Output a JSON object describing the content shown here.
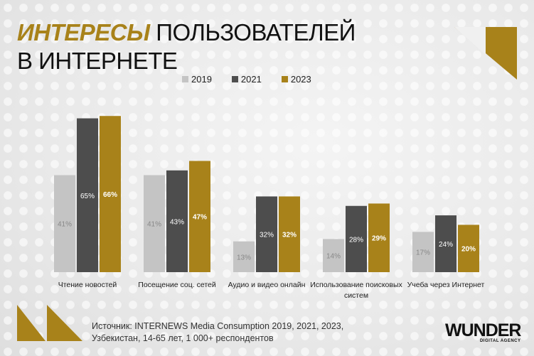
{
  "title": {
    "accent": "ИНТЕРЕСЫ",
    "rest": " ПОЛЬЗОВАТЕЛЕЙ",
    "line2": "В ИНТЕРНЕТЕ"
  },
  "colors": {
    "2019": "#c4c4c4",
    "2021": "#4d4d4d",
    "2023": "#a8821a",
    "accent": "#a8821a"
  },
  "chart_data": {
    "type": "bar",
    "categories": [
      "Чтение новостей",
      "Посещение соц. сетей",
      "Аудио и видео онлайн",
      "Использование поисковых систем",
      "Учеба через Интернет"
    ],
    "series": [
      {
        "name": "2019",
        "values": [
          41,
          41,
          13,
          14,
          17
        ]
      },
      {
        "name": "2021",
        "values": [
          65,
          43,
          32,
          28,
          24
        ]
      },
      {
        "name": "2023",
        "values": [
          66,
          47,
          32,
          29,
          20
        ]
      }
    ],
    "value_suffix": "%",
    "ylim": [
      0,
      70
    ],
    "legend": "top",
    "grid": false
  },
  "source": {
    "line1": "Источник: INTERNEWS Media Consumption 2019, 2021, 2023,",
    "line2": "Узбекистан, 14-65 лет, 1 000+ респондентов"
  },
  "logo": {
    "name": "WUNDER",
    "sub": "DIGITAL AGENCY"
  }
}
